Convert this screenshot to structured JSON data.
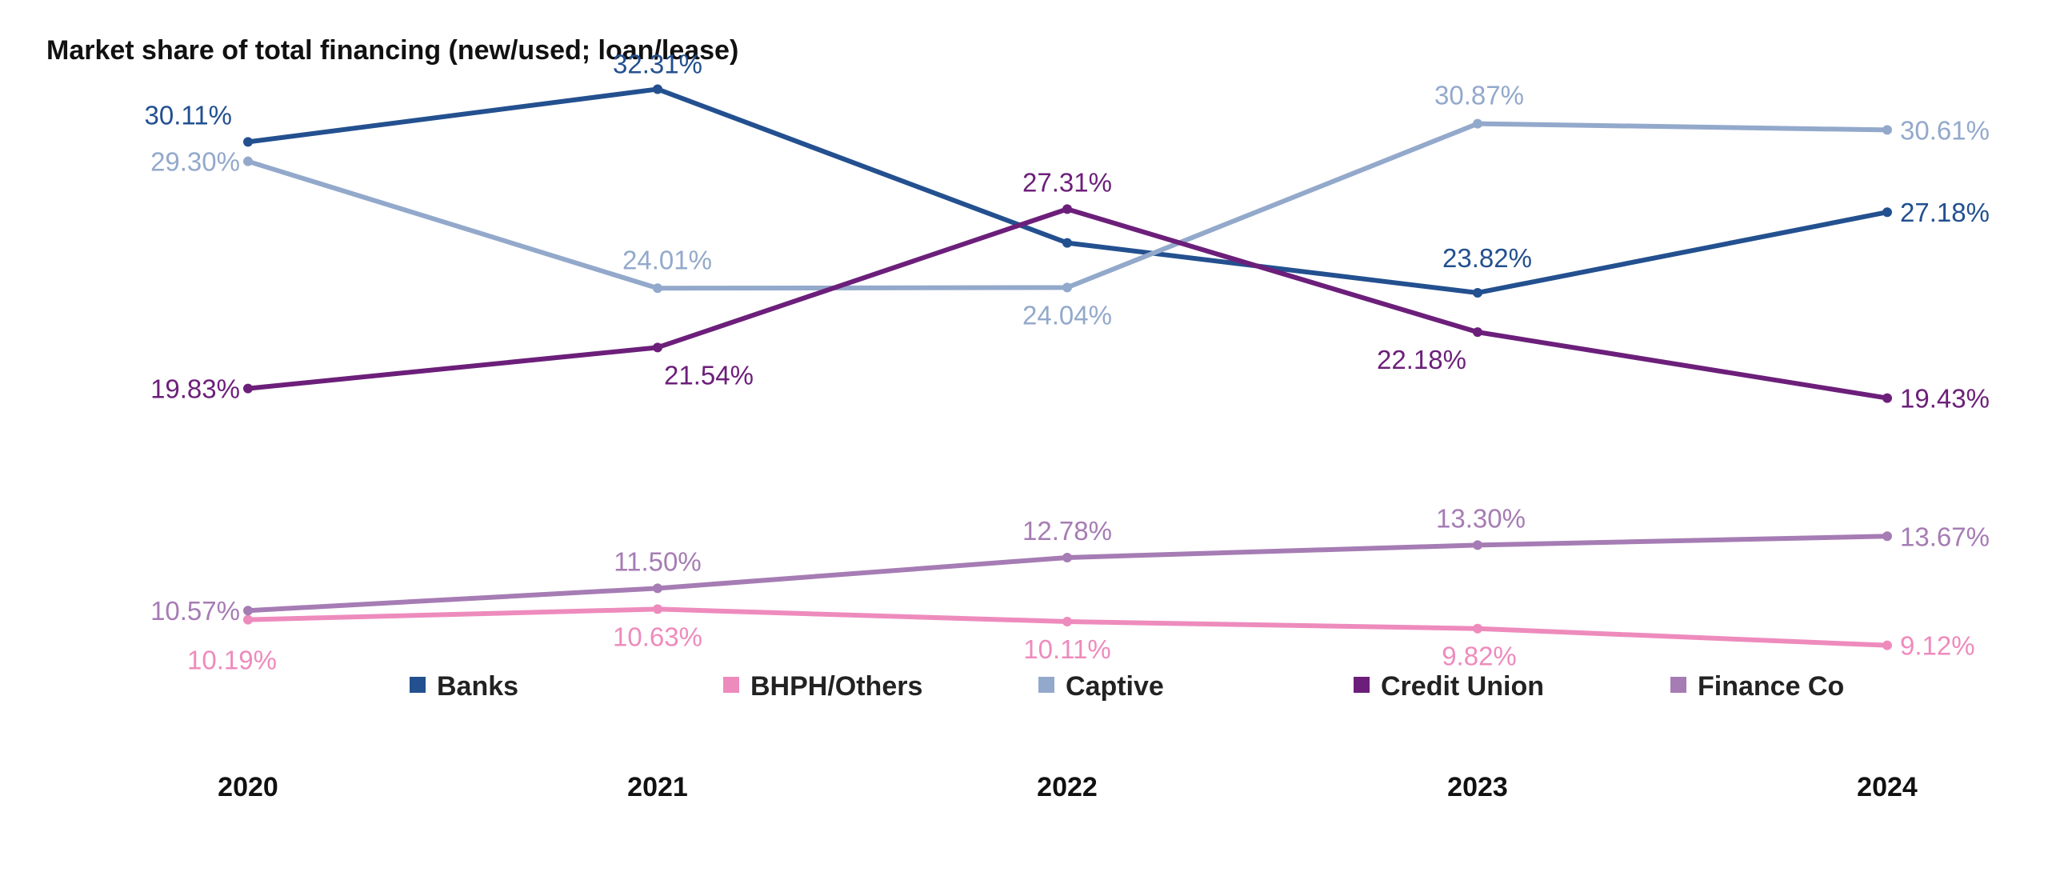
{
  "chart_data": {
    "type": "line",
    "title": "Market share of total financing (new/used; loan/lease)",
    "xlabel": "",
    "ylabel": "",
    "x": [
      "2020",
      "2021",
      "2022",
      "2023",
      "2024"
    ],
    "ylim": [
      0,
      35
    ],
    "grid": false,
    "legend_position": "bottom",
    "series": [
      {
        "name": "Banks",
        "color": "#23508f",
        "values": [
          30.11,
          32.31,
          25.9,
          23.82,
          27.18
        ],
        "labels": [
          "30.11%",
          "32.31%",
          "",
          "23.82%",
          "27.18%"
        ]
      },
      {
        "name": "BHPH/Others",
        "color": "#ee8bbd",
        "values": [
          10.19,
          10.63,
          10.11,
          9.82,
          9.12
        ],
        "labels": [
          "10.19%",
          "10.63%",
          "10.11%",
          "9.82%",
          "9.12%"
        ]
      },
      {
        "name": "Captive",
        "color": "#93a9cb",
        "values": [
          29.3,
          24.01,
          24.04,
          30.87,
          30.61
        ],
        "labels": [
          "29.30%",
          "24.01%",
          "24.04%",
          "30.87%",
          "30.61%"
        ]
      },
      {
        "name": "Credit Union",
        "color": "#6c1f7a",
        "values": [
          19.83,
          21.54,
          27.31,
          22.18,
          19.43
        ],
        "labels": [
          "19.83%",
          "21.54%",
          "27.31%",
          "22.18%",
          "19.43%"
        ]
      },
      {
        "name": "Finance Co",
        "color": "#a67cb4",
        "values": [
          10.57,
          11.5,
          12.78,
          13.3,
          13.67
        ],
        "labels": [
          "10.57%",
          "11.50%",
          "12.78%",
          "13.30%",
          "13.67%"
        ]
      }
    ]
  }
}
